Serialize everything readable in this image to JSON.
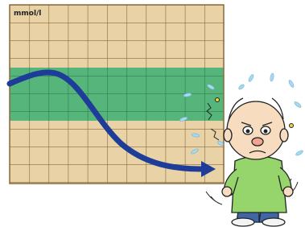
{
  "label": "mmol/l"
}
